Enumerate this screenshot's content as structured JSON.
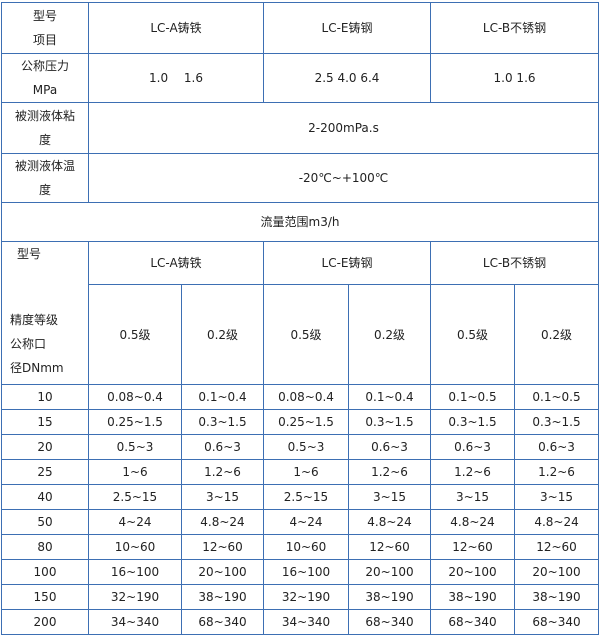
{
  "spec": {
    "corner_top": "型号",
    "corner_bottom": "项目",
    "models": [
      "LC-A铸铁",
      "LC-E铸钢",
      "LC-B不锈钢"
    ],
    "pressure_label_1": "公称压力",
    "pressure_label_2": "MPa",
    "pressures": [
      "1.0　 1.6",
      "2.5 4.0 6.4",
      "1.0 1.6"
    ],
    "viscosity_label_1": "被测液体粘",
    "viscosity_label_2": "度",
    "viscosity_value": "2-200mPa.s",
    "temperature_label_1": "被测液体温",
    "temperature_label_2": "度",
    "temperature_value": "-20℃~+100℃"
  },
  "flow": {
    "title": "流量范围m3/h",
    "corner_model": "型号",
    "corner_grade": "精度等级",
    "corner_dn_1": "公称口",
    "corner_dn_2": "径DNmm",
    "models": [
      "LC-A铸铁",
      "LC-E铸钢",
      "LC-B不锈钢"
    ],
    "grades": [
      "0.5级",
      "0.2级",
      "0.5级",
      "0.2级",
      "0.5级",
      "0.2级"
    ],
    "rows": [
      {
        "dn": "10",
        "values": [
          "0.08~0.4",
          "0.1~0.4",
          "0.08~0.4",
          "0.1~0.4",
          "0.1~0.5",
          "0.1~0.5"
        ]
      },
      {
        "dn": "15",
        "values": [
          "0.25~1.5",
          "0.3~1.5",
          "0.25~1.5",
          "0.3~1.5",
          "0.3~1.5",
          "0.3~1.5"
        ]
      },
      {
        "dn": "20",
        "values": [
          "0.5~3",
          "0.6~3",
          "0.5~3",
          "0.6~3",
          "0.6~3",
          "0.6~3"
        ]
      },
      {
        "dn": "25",
        "values": [
          "1~6",
          "1.2~6",
          "1~6",
          "1.2~6",
          "1.2~6",
          "1.2~6"
        ]
      },
      {
        "dn": "40",
        "values": [
          "2.5~15",
          "3~15",
          "2.5~15",
          "3~15",
          "3~15",
          "3~15"
        ]
      },
      {
        "dn": "50",
        "values": [
          "4~24",
          "4.8~24",
          "4~24",
          "4.8~24",
          "4.8~24",
          "4.8~24"
        ]
      },
      {
        "dn": "80",
        "values": [
          "10~60",
          "12~60",
          "10~60",
          "12~60",
          "12~60",
          "12~60"
        ]
      },
      {
        "dn": "100",
        "values": [
          "16~100",
          "20~100",
          "16~100",
          "20~100",
          "20~100",
          "20~100"
        ]
      },
      {
        "dn": "150",
        "values": [
          "32~190",
          "38~190",
          "32~190",
          "38~190",
          "38~190",
          "38~190"
        ]
      },
      {
        "dn": "200",
        "values": [
          "34~340",
          "68~340",
          "34~340",
          "68~340",
          "68~340",
          "68~340"
        ]
      }
    ]
  }
}
